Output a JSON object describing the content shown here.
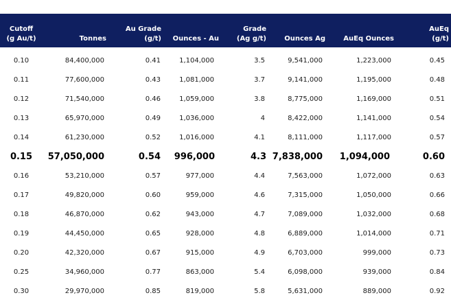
{
  "table": {
    "columns": [
      {
        "key": "cutoff",
        "line1": "Cutoff",
        "line2": "(g Au/t)"
      },
      {
        "key": "tonnes",
        "line1": "",
        "line2": "Tonnes"
      },
      {
        "key": "au_grade",
        "line1": "Au Grade",
        "line2": "(g/t)"
      },
      {
        "key": "ounces_au",
        "line1": "",
        "line2": "Ounces - Au"
      },
      {
        "key": "ag_grade",
        "line1": "Grade",
        "line2": "(Ag g/t)"
      },
      {
        "key": "ounces_ag",
        "line1": "",
        "line2": "Ounces Ag"
      },
      {
        "key": "aueq_ounces",
        "line1": "",
        "line2": "AuEq Ounces"
      },
      {
        "key": "aueq_grade",
        "line1": "AuEq",
        "line2": "(g/t)"
      }
    ],
    "rows": [
      {
        "cutoff": "0.10",
        "tonnes": "84,400,000",
        "au_grade": "0.41",
        "ounces_au": "1,104,000",
        "ag_grade": "3.5",
        "ounces_ag": "9,541,000",
        "aueq_ounces": "1,223,000",
        "aueq_grade": "0.45",
        "highlight": false
      },
      {
        "cutoff": "0.11",
        "tonnes": "77,600,000",
        "au_grade": "0.43",
        "ounces_au": "1,081,000",
        "ag_grade": "3.7",
        "ounces_ag": "9,141,000",
        "aueq_ounces": "1,195,000",
        "aueq_grade": "0.48",
        "highlight": false
      },
      {
        "cutoff": "0.12",
        "tonnes": "71,540,000",
        "au_grade": "0.46",
        "ounces_au": "1,059,000",
        "ag_grade": "3.8",
        "ounces_ag": "8,775,000",
        "aueq_ounces": "1,169,000",
        "aueq_grade": "0.51",
        "highlight": false
      },
      {
        "cutoff": "0.13",
        "tonnes": "65,970,000",
        "au_grade": "0.49",
        "ounces_au": "1,036,000",
        "ag_grade": "4",
        "ounces_ag": "8,422,000",
        "aueq_ounces": "1,141,000",
        "aueq_grade": "0.54",
        "highlight": false
      },
      {
        "cutoff": "0.14",
        "tonnes": "61,230,000",
        "au_grade": "0.52",
        "ounces_au": "1,016,000",
        "ag_grade": "4.1",
        "ounces_ag": "8,111,000",
        "aueq_ounces": "1,117,000",
        "aueq_grade": "0.57",
        "highlight": false
      },
      {
        "cutoff": "0.15",
        "tonnes": "57,050,000",
        "au_grade": "0.54",
        "ounces_au": "996,000",
        "ag_grade": "4.3",
        "ounces_ag": "7,838,000",
        "aueq_ounces": "1,094,000",
        "aueq_grade": "0.60",
        "highlight": true
      },
      {
        "cutoff": "0.16",
        "tonnes": "53,210,000",
        "au_grade": "0.57",
        "ounces_au": "977,000",
        "ag_grade": "4.4",
        "ounces_ag": "7,563,000",
        "aueq_ounces": "1,072,000",
        "aueq_grade": "0.63",
        "highlight": false
      },
      {
        "cutoff": "0.17",
        "tonnes": "49,820,000",
        "au_grade": "0.60",
        "ounces_au": "959,000",
        "ag_grade": "4.6",
        "ounces_ag": "7,315,000",
        "aueq_ounces": "1,050,000",
        "aueq_grade": "0.66",
        "highlight": false
      },
      {
        "cutoff": "0.18",
        "tonnes": "46,870,000",
        "au_grade": "0.62",
        "ounces_au": "943,000",
        "ag_grade": "4.7",
        "ounces_ag": "7,089,000",
        "aueq_ounces": "1,032,000",
        "aueq_grade": "0.68",
        "highlight": false
      },
      {
        "cutoff": "0.19",
        "tonnes": "44,450,000",
        "au_grade": "0.65",
        "ounces_au": "928,000",
        "ag_grade": "4.8",
        "ounces_ag": "6,889,000",
        "aueq_ounces": "1,014,000",
        "aueq_grade": "0.71",
        "highlight": false
      },
      {
        "cutoff": "0.20",
        "tonnes": "42,320,000",
        "au_grade": "0.67",
        "ounces_au": "915,000",
        "ag_grade": "4.9",
        "ounces_ag": "6,703,000",
        "aueq_ounces": "999,000",
        "aueq_grade": "0.73",
        "highlight": false
      },
      {
        "cutoff": "0.25",
        "tonnes": "34,960,000",
        "au_grade": "0.77",
        "ounces_au": "863,000",
        "ag_grade": "5.4",
        "ounces_ag": "6,098,000",
        "aueq_ounces": "939,000",
        "aueq_grade": "0.84",
        "highlight": false
      },
      {
        "cutoff": "0.30",
        "tonnes": "29,970,000",
        "au_grade": "0.85",
        "ounces_au": "819,000",
        "ag_grade": "5.8",
        "ounces_ag": "5,631,000",
        "aueq_ounces": "889,000",
        "aueq_grade": "0.92",
        "highlight": false
      }
    ]
  },
  "colors": {
    "header_bg": "#0f1f60",
    "header_text": "#ffffff",
    "body_text": "#1a1a1a"
  }
}
